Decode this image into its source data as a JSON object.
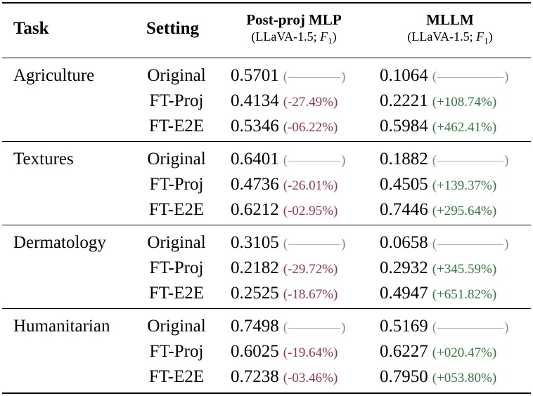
{
  "header": {
    "task": "Task",
    "setting": "Setting",
    "col1_title": "Post-proj MLP",
    "col1_sub_prefix": "(LLaVA-1.5; ",
    "col1_sub_var": "F",
    "col1_sub_index": "1",
    "col1_sub_suffix": ")",
    "col2_title": "MLLM",
    "col2_sub_prefix": "(LLaVA-1.5; ",
    "col2_sub_var": "F",
    "col2_sub_index": "1",
    "col2_sub_suffix": ")"
  },
  "groups": [
    {
      "task": "Agriculture",
      "rows": [
        {
          "setting": "Original",
          "mlp": "0.5701",
          "mlp_delta": "",
          "mllm": "0.1064",
          "mllm_delta": ""
        },
        {
          "setting": "FT-Proj",
          "mlp": "0.4134",
          "mlp_delta": "(-27.49%)",
          "mllm": "0.2221",
          "mllm_delta": "(+108.74%)"
        },
        {
          "setting": "FT-E2E",
          "mlp": "0.5346",
          "mlp_delta": "(-06.22%)",
          "mllm": "0.5984",
          "mllm_delta": "(+462.41%)"
        }
      ]
    },
    {
      "task": "Textures",
      "rows": [
        {
          "setting": "Original",
          "mlp": "0.6401",
          "mlp_delta": "",
          "mllm": "0.1882",
          "mllm_delta": ""
        },
        {
          "setting": "FT-Proj",
          "mlp": "0.4736",
          "mlp_delta": "(-26.01%)",
          "mllm": "0.4505",
          "mllm_delta": "(+139.37%)"
        },
        {
          "setting": "FT-E2E",
          "mlp": "0.6212",
          "mlp_delta": "(-02.95%)",
          "mllm": "0.7446",
          "mllm_delta": "(+295.64%)"
        }
      ]
    },
    {
      "task": "Dermatology",
      "rows": [
        {
          "setting": "Original",
          "mlp": "0.3105",
          "mlp_delta": "",
          "mllm": "0.0658",
          "mllm_delta": ""
        },
        {
          "setting": "FT-Proj",
          "mlp": "0.2182",
          "mlp_delta": "(-29.72%)",
          "mllm": "0.2932",
          "mllm_delta": "(+345.59%)"
        },
        {
          "setting": "FT-E2E",
          "mlp": "0.2525",
          "mlp_delta": "(-18.67%)",
          "mllm": "0.4947",
          "mllm_delta": "(+651.82%)"
        }
      ]
    },
    {
      "task": "Humanitarian",
      "rows": [
        {
          "setting": "Original",
          "mlp": "0.7498",
          "mlp_delta": "",
          "mllm": "0.5169",
          "mllm_delta": ""
        },
        {
          "setting": "FT-Proj",
          "mlp": "0.6025",
          "mlp_delta": "(-19.64%)",
          "mllm": "0.6227",
          "mllm_delta": "(+020.47%)"
        },
        {
          "setting": "FT-E2E",
          "mlp": "0.7238",
          "mlp_delta": "(-03.46%)",
          "mllm": "0.7950",
          "mllm_delta": "(+053.80%)"
        }
      ]
    }
  ],
  "colors": {
    "negative": "#9e3150",
    "positive": "#2e7d3a",
    "placeholder": "#888888"
  }
}
